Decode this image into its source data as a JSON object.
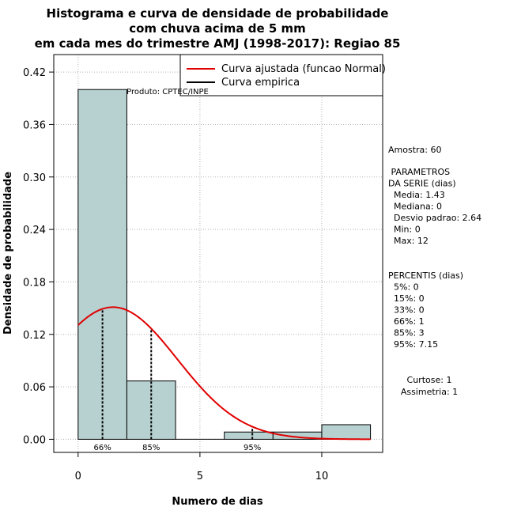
{
  "chart_data": {
    "type": "bar",
    "title_lines": [
      "Histograma e curva de densidade de probabilidade",
      "com chuva acima de 5 mm",
      "em cada mes do trimestre AMJ (1998-2017): Regiao 85"
    ],
    "xlabel": "Numero de dias",
    "ylabel": "Densidade de probabilidade",
    "xlim": [
      -1,
      12.5
    ],
    "ylim": [
      -0.015,
      0.44
    ],
    "xticks": [
      0,
      5,
      10
    ],
    "yticks": [
      0.0,
      0.06,
      0.12,
      0.18,
      0.24,
      0.3,
      0.36,
      0.42
    ],
    "ytick_labels": [
      "0.00",
      "0.06",
      "0.12",
      "0.18",
      "0.24",
      "0.30",
      "0.36",
      "0.42"
    ],
    "grid": true,
    "bar_color": "#b7d0d0",
    "bins": [
      {
        "from": 0,
        "to": 2,
        "density": 0.4
      },
      {
        "from": 2,
        "to": 4,
        "density": 0.0667
      },
      {
        "from": 4,
        "to": 6,
        "density": 0.0
      },
      {
        "from": 6,
        "to": 8,
        "density": 0.0083
      },
      {
        "from": 8,
        "to": 10,
        "density": 0.0083
      },
      {
        "from": 10,
        "to": 12,
        "density": 0.0167
      }
    ],
    "normal_curve": {
      "mean": 1.43,
      "sd": 2.64,
      "from": 0,
      "to": 12,
      "color": "#e00000"
    },
    "percentile_markers": [
      {
        "label": "66%",
        "x": 1
      },
      {
        "label": "85%",
        "x": 3
      },
      {
        "label": "95%",
        "x": 7.15
      }
    ],
    "legend": {
      "position": "top-right",
      "items": [
        {
          "label": "Curva ajustada (funcao Normal)",
          "color": "#e00000"
        },
        {
          "label": "Curva empirica",
          "color": "#000000"
        }
      ]
    },
    "credit": "Produto: CPTEC/INPE"
  },
  "stats": {
    "sample": "Amostra: 60",
    "params_lines": [
      " PARAMETROS",
      "DA SERIE (dias)",
      "  Media: 1.43",
      "  Mediana: 0",
      "  Desvio padrao: 2.64",
      "  Min: 0",
      "  Max: 12"
    ],
    "percentile_lines": [
      "PERCENTIS (dias)",
      "  5%: 0",
      "  15%: 0",
      "  33%: 0",
      "  66%: 1",
      "  85%: 3",
      "  95%: 7.15"
    ],
    "shape_lines": [
      "Curtose: 1",
      "Assimetria: 1"
    ]
  }
}
